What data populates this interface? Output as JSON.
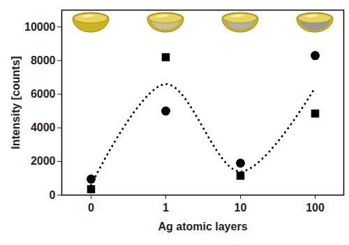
{
  "chart_data": {
    "type": "scatter",
    "x_label": "Ag atomic layers",
    "y_label": "Intensity [counts]",
    "categories": [
      "0",
      "1",
      "10",
      "100"
    ],
    "ylim": [
      0,
      11000
    ],
    "yticks": [
      0,
      2000,
      4000,
      6000,
      8000,
      10000
    ],
    "grid": false,
    "series": [
      {
        "type": "scatter",
        "marker": "square",
        "color": "#000000",
        "values": [
          350,
          8200,
          1150,
          4850
        ]
      },
      {
        "type": "scatter",
        "marker": "circle",
        "color": "#000000",
        "values": [
          950,
          5000,
          1900,
          8300
        ]
      },
      {
        "type": "line",
        "line_style": "dotted",
        "color": "#000000",
        "values": [
          600,
          6600,
          1400,
          6400
        ]
      }
    ]
  }
}
